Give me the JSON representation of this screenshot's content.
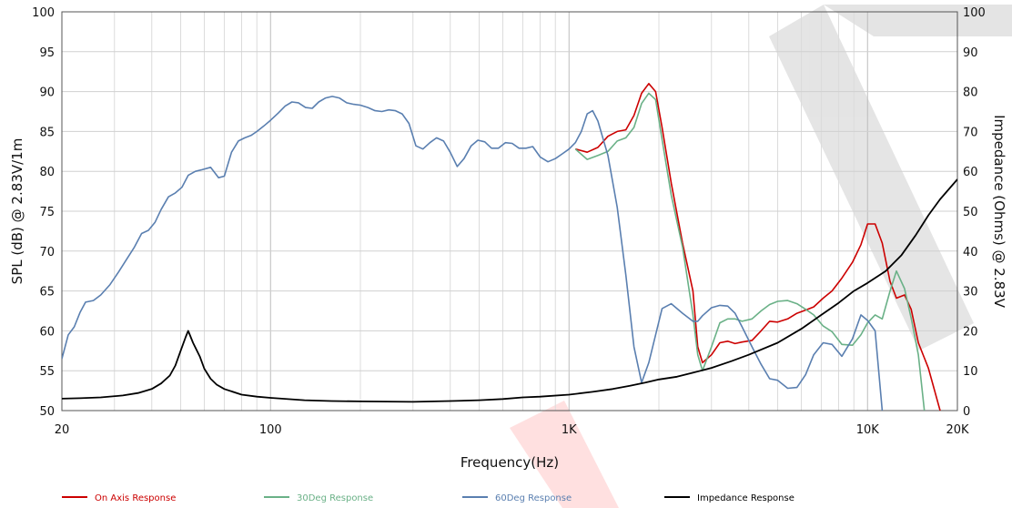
{
  "chart_data": {
    "type": "line",
    "title": "",
    "xlabel": "Frequency(Hz)",
    "ylabel": "SPL (dB) @ 2.83V/1m",
    "y2label": "Impedance (Ohms) @ 2.83V",
    "x_scale": "log",
    "xlim": [
      20,
      20000
    ],
    "ylim": [
      50,
      100
    ],
    "y2lim": [
      0,
      100
    ],
    "grid": true,
    "legend_position": "bottom",
    "x_ticks": [
      {
        "value": 20,
        "label": "20"
      },
      {
        "value": 100,
        "label": "100"
      },
      {
        "value": 1000,
        "label": "1K"
      },
      {
        "value": 10000,
        "label": "10K"
      },
      {
        "value": 20000,
        "label": "20K"
      }
    ],
    "y_ticks": [
      "50",
      "55",
      "60",
      "65",
      "70",
      "75",
      "80",
      "85",
      "90",
      "95",
      "100"
    ],
    "y2_ticks": [
      "0",
      "10",
      "20",
      "30",
      "40",
      "50",
      "60",
      "70",
      "80",
      "90",
      "100"
    ],
    "series": [
      {
        "name": "On Axis Response",
        "color": "#cc0000",
        "axis": "left",
        "points": [
          [
            1050,
            82.8
          ],
          [
            1150,
            82.4
          ],
          [
            1250,
            83
          ],
          [
            1350,
            84.4
          ],
          [
            1450,
            85
          ],
          [
            1550,
            85.2
          ],
          [
            1650,
            87
          ],
          [
            1750,
            89.8
          ],
          [
            1850,
            91
          ],
          [
            1950,
            90
          ],
          [
            2050,
            85.5
          ],
          [
            2200,
            78.5
          ],
          [
            2400,
            71
          ],
          [
            2600,
            65
          ],
          [
            2700,
            58
          ],
          [
            2800,
            56
          ],
          [
            3000,
            57
          ],
          [
            3200,
            58.5
          ],
          [
            3400,
            58.7
          ],
          [
            3600,
            58.4
          ],
          [
            3800,
            58.6
          ],
          [
            4100,
            58.8
          ],
          [
            4400,
            60
          ],
          [
            4700,
            61.2
          ],
          [
            5000,
            61.1
          ],
          [
            5400,
            61.5
          ],
          [
            5800,
            62.2
          ],
          [
            6200,
            62.6
          ],
          [
            6600,
            63
          ],
          [
            7100,
            64.1
          ],
          [
            7600,
            65
          ],
          [
            8200,
            66.6
          ],
          [
            8900,
            68.6
          ],
          [
            9500,
            70.8
          ],
          [
            10000,
            73.4
          ],
          [
            10600,
            73.4
          ],
          [
            11200,
            71
          ],
          [
            11900,
            66.2
          ],
          [
            12500,
            64.1
          ],
          [
            13300,
            64.5
          ],
          [
            14000,
            62.7
          ],
          [
            14800,
            58.5
          ],
          [
            16000,
            55.3
          ],
          [
            17500,
            50
          ]
        ]
      },
      {
        "name": "30Deg Response",
        "color": "#6ab187",
        "axis": "left",
        "points": [
          [
            1050,
            82.8
          ],
          [
            1150,
            81.5
          ],
          [
            1250,
            82
          ],
          [
            1350,
            82.5
          ],
          [
            1450,
            83.8
          ],
          [
            1550,
            84.2
          ],
          [
            1650,
            85.5
          ],
          [
            1750,
            88.5
          ],
          [
            1850,
            89.8
          ],
          [
            1950,
            89
          ],
          [
            2050,
            84
          ],
          [
            2200,
            77
          ],
          [
            2400,
            70.5
          ],
          [
            2600,
            62
          ],
          [
            2700,
            57
          ],
          [
            2800,
            55
          ],
          [
            3000,
            58
          ],
          [
            3200,
            61
          ],
          [
            3400,
            61.5
          ],
          [
            3600,
            61.5
          ],
          [
            3800,
            61.2
          ],
          [
            4100,
            61.5
          ],
          [
            4400,
            62.5
          ],
          [
            4700,
            63.3
          ],
          [
            5000,
            63.7
          ],
          [
            5400,
            63.8
          ],
          [
            5800,
            63.4
          ],
          [
            6200,
            62.7
          ],
          [
            6600,
            62
          ],
          [
            7100,
            60.6
          ],
          [
            7600,
            59.9
          ],
          [
            8200,
            58.3
          ],
          [
            8900,
            58.2
          ],
          [
            9500,
            59.5
          ],
          [
            10000,
            61
          ],
          [
            10600,
            62
          ],
          [
            11200,
            61.5
          ],
          [
            11900,
            65
          ],
          [
            12500,
            67.5
          ],
          [
            13300,
            65.3
          ],
          [
            14000,
            61.6
          ],
          [
            14800,
            57
          ],
          [
            15500,
            50
          ]
        ]
      },
      {
        "name": "60Deg Response",
        "color": "#5a7fb0",
        "axis": "left",
        "points": [
          [
            20,
            56.5
          ],
          [
            21,
            59.5
          ],
          [
            22,
            60.5
          ],
          [
            23,
            62.3
          ],
          [
            24,
            63.6
          ],
          [
            25.5,
            63.8
          ],
          [
            27,
            64.5
          ],
          [
            29,
            65.8
          ],
          [
            31,
            67.4
          ],
          [
            33,
            69
          ],
          [
            35,
            70.5
          ],
          [
            37,
            72.2
          ],
          [
            39,
            72.6
          ],
          [
            41,
            73.6
          ],
          [
            43,
            75.2
          ],
          [
            45.5,
            76.8
          ],
          [
            48,
            77.3
          ],
          [
            50.5,
            78
          ],
          [
            53,
            79.5
          ],
          [
            56,
            80
          ],
          [
            59,
            80.2
          ],
          [
            63,
            80.5
          ],
          [
            67,
            79.2
          ],
          [
            70,
            79.4
          ],
          [
            74,
            82.4
          ],
          [
            78,
            83.8
          ],
          [
            82,
            84.2
          ],
          [
            86,
            84.5
          ],
          [
            90,
            85
          ],
          [
            95,
            85.7
          ],
          [
            100,
            86.4
          ],
          [
            106,
            87.3
          ],
          [
            112,
            88.2
          ],
          [
            118,
            88.7
          ],
          [
            124,
            88.6
          ],
          [
            131,
            88
          ],
          [
            138,
            87.9
          ],
          [
            145,
            88.7
          ],
          [
            153,
            89.2
          ],
          [
            161,
            89.4
          ],
          [
            170,
            89.2
          ],
          [
            180,
            88.6
          ],
          [
            190,
            88.4
          ],
          [
            200,
            88.3
          ],
          [
            212,
            88
          ],
          [
            224,
            87.6
          ],
          [
            236,
            87.5
          ],
          [
            249,
            87.7
          ],
          [
            262,
            87.6
          ],
          [
            276,
            87.2
          ],
          [
            291,
            86
          ],
          [
            307,
            83.2
          ],
          [
            324,
            82.8
          ],
          [
            342,
            83.6
          ],
          [
            360,
            84.2
          ],
          [
            380,
            83.8
          ],
          [
            400,
            82.4
          ],
          [
            422,
            80.6
          ],
          [
            445,
            81.6
          ],
          [
            470,
            83.2
          ],
          [
            495,
            83.9
          ],
          [
            522,
            83.7
          ],
          [
            550,
            82.9
          ],
          [
            580,
            82.9
          ],
          [
            612,
            83.6
          ],
          [
            645,
            83.5
          ],
          [
            680,
            82.9
          ],
          [
            717,
            82.9
          ],
          [
            756,
            83.1
          ],
          [
            800,
            81.8
          ],
          [
            850,
            81.2
          ],
          [
            900,
            81.6
          ],
          [
            950,
            82.2
          ],
          [
            1000,
            82.8
          ],
          [
            1050,
            83.6
          ],
          [
            1100,
            85
          ],
          [
            1150,
            87.2
          ],
          [
            1200,
            87.6
          ],
          [
            1250,
            86.3
          ],
          [
            1350,
            82
          ],
          [
            1450,
            75.5
          ],
          [
            1550,
            67
          ],
          [
            1650,
            58
          ],
          [
            1750,
            53.5
          ],
          [
            1850,
            56
          ],
          [
            1950,
            59.5
          ],
          [
            2050,
            62.8
          ],
          [
            2200,
            63.4
          ],
          [
            2400,
            62.2
          ],
          [
            2600,
            61.2
          ],
          [
            2700,
            61.2
          ],
          [
            2800,
            61.9
          ],
          [
            3000,
            62.9
          ],
          [
            3200,
            63.2
          ],
          [
            3400,
            63.1
          ],
          [
            3600,
            62.2
          ],
          [
            3800,
            60.5
          ],
          [
            4100,
            58
          ],
          [
            4400,
            55.8
          ],
          [
            4700,
            54
          ],
          [
            5000,
            53.8
          ],
          [
            5400,
            52.8
          ],
          [
            5800,
            52.9
          ],
          [
            6200,
            54.5
          ],
          [
            6600,
            57
          ],
          [
            7100,
            58.5
          ],
          [
            7600,
            58.3
          ],
          [
            8200,
            56.8
          ],
          [
            8900,
            59
          ],
          [
            9500,
            62
          ],
          [
            10000,
            61.3
          ],
          [
            10600,
            60
          ],
          [
            11200,
            50
          ]
        ]
      },
      {
        "name": "Impedance Response",
        "color": "#000000",
        "axis": "right",
        "points": [
          [
            20,
            3.0
          ],
          [
            23,
            3.1
          ],
          [
            27,
            3.3
          ],
          [
            32,
            3.8
          ],
          [
            36,
            4.4
          ],
          [
            40,
            5.4
          ],
          [
            43,
            6.8
          ],
          [
            46,
            8.8
          ],
          [
            48,
            11.3
          ],
          [
            50,
            15
          ],
          [
            52,
            18.5
          ],
          [
            53,
            20
          ],
          [
            55,
            17
          ],
          [
            58,
            13.5
          ],
          [
            60,
            10.5
          ],
          [
            63,
            8
          ],
          [
            66,
            6.5
          ],
          [
            70,
            5.4
          ],
          [
            80,
            4
          ],
          [
            90,
            3.5
          ],
          [
            100,
            3.2
          ],
          [
            130,
            2.6
          ],
          [
            160,
            2.4
          ],
          [
            200,
            2.3
          ],
          [
            300,
            2.2
          ],
          [
            400,
            2.4
          ],
          [
            500,
            2.6
          ],
          [
            600,
            2.9
          ],
          [
            700,
            3.3
          ],
          [
            800,
            3.5
          ],
          [
            1000,
            4
          ],
          [
            1200,
            4.7
          ],
          [
            1400,
            5.4
          ],
          [
            1600,
            6.2
          ],
          [
            1800,
            7
          ],
          [
            2000,
            7.8
          ],
          [
            2300,
            8.5
          ],
          [
            2600,
            9.5
          ],
          [
            3000,
            10.7
          ],
          [
            3500,
            12.4
          ],
          [
            4000,
            14
          ],
          [
            5000,
            17
          ],
          [
            6000,
            20.5
          ],
          [
            7000,
            24
          ],
          [
            8000,
            27
          ],
          [
            9000,
            30
          ],
          [
            10000,
            32
          ],
          [
            11500,
            35
          ],
          [
            13000,
            39
          ],
          [
            14500,
            44
          ],
          [
            16000,
            49
          ],
          [
            17500,
            53
          ],
          [
            20000,
            58
          ]
        ]
      }
    ]
  }
}
